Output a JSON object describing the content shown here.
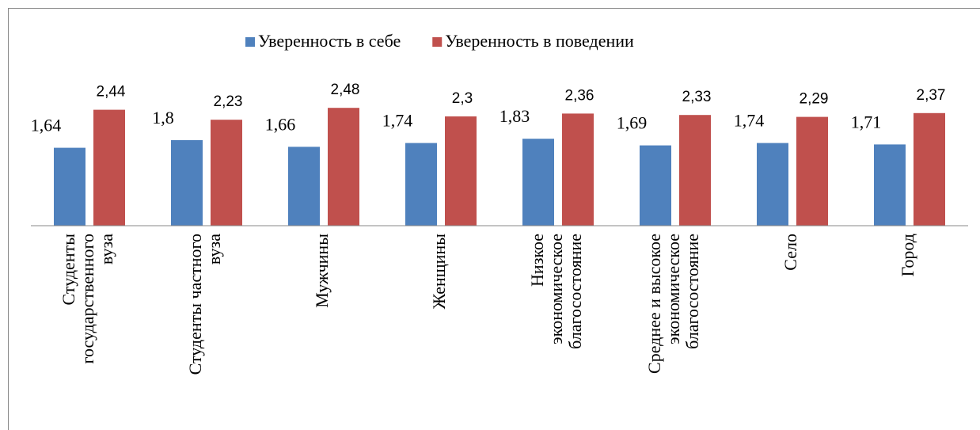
{
  "chart_data": {
    "type": "bar",
    "categories": [
      "Студенты\nгосударственного\nвуза",
      "Студенты частного\nвуза",
      "Мужчины",
      "Женщины",
      "Низкое\nэкономическое\nблагосостояние",
      "Среднее и высокое\nэкономическое\nблагосостояние",
      "Село",
      "Город"
    ],
    "series": [
      {
        "name": "Уверенность в себе",
        "color": "#4f81bd",
        "values": [
          1.64,
          1.8,
          1.66,
          1.74,
          1.83,
          1.69,
          1.74,
          1.71
        ],
        "value_labels": [
          "1,64",
          "1,8",
          "1,66",
          "1,74",
          "1,83",
          "1,69",
          "1,74",
          "1,71"
        ]
      },
      {
        "name": "Уверенность в поведении",
        "color": "#c0504d",
        "values": [
          2.44,
          2.23,
          2.48,
          2.3,
          2.36,
          2.33,
          2.29,
          2.37
        ],
        "value_labels": [
          "2,44",
          "2,23",
          "2,48",
          "2,3",
          "2,36",
          "2,33",
          "2,29",
          "2,37"
        ]
      }
    ],
    "ylim": [
      0,
      4
    ],
    "legend": "top"
  }
}
